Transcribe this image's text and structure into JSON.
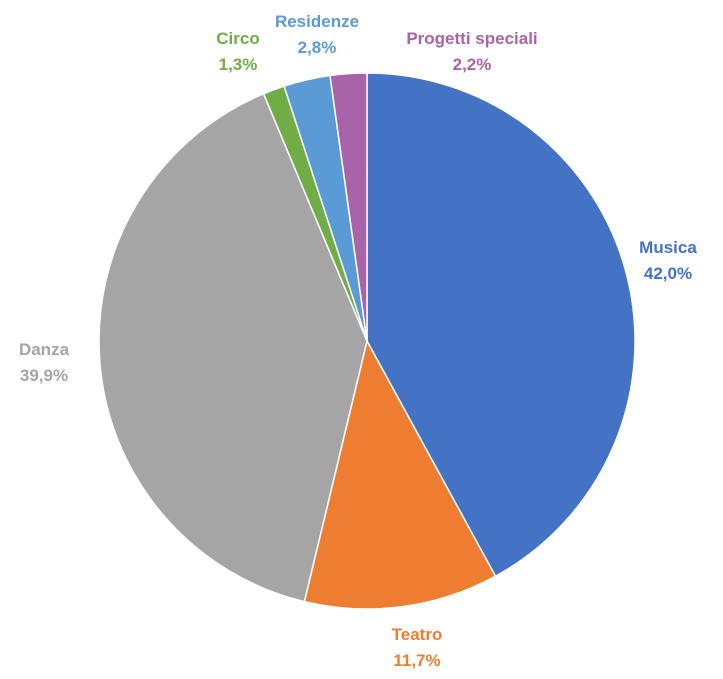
{
  "chart_data": {
    "type": "pie",
    "title": "",
    "slices": [
      {
        "name": "Musica",
        "value": 42.0,
        "display": "42,0%",
        "color": "#4472c4"
      },
      {
        "name": "Teatro",
        "value": 11.7,
        "display": "11,7%",
        "color": "#ed7d31"
      },
      {
        "name": "Danza",
        "value": 39.9,
        "display": "39,9%",
        "color": "#a5a5a5"
      },
      {
        "name": "Circo",
        "value": 1.3,
        "display": "1,3%",
        "color": "#70ad47"
      },
      {
        "name": "Residenze",
        "value": 2.8,
        "display": "2,8%",
        "color": "#5b9bd5"
      },
      {
        "name": "Progetti speciali",
        "value": 2.2,
        "display": "2,2%",
        "color": "#a964a9"
      }
    ],
    "start_angle": "12 o'clock",
    "direction": "clockwise",
    "legend": "none",
    "data_labels": "outside"
  }
}
